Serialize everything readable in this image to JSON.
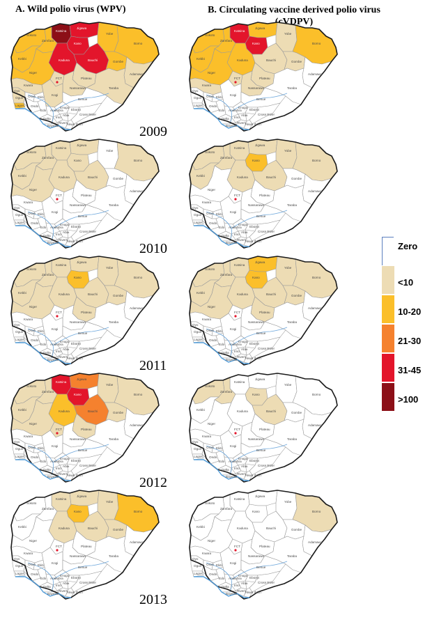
{
  "titles": {
    "col_a": "A. Wild polio virus (WPV)",
    "col_b": "B. Circulating vaccine derived polio virus (cVDPV)"
  },
  "years": [
    "2009",
    "2010",
    "2011",
    "2012",
    "2013"
  ],
  "legend": [
    {
      "label": "Zero",
      "color": "#ffffff"
    },
    {
      "label": "<10",
      "color": "#eddcb4"
    },
    {
      "label": "10-20",
      "color": "#fbbf2a"
    },
    {
      "label": "21-30",
      "color": "#f5812e"
    },
    {
      "label": "31-45",
      "color": "#e3152b"
    },
    {
      "label": ">100",
      "color": "#8c0f17"
    }
  ],
  "state_names": {
    "sokoto": "Sokoto",
    "katsina": "Katsina",
    "jigawa": "Jigawa",
    "yobe": "Yobe",
    "borno": "Borno",
    "zamfara": "Zamfara",
    "kano": "Kano",
    "kebbi": "Kebbi",
    "kaduna": "Kaduna",
    "bauchi": "Bauchi",
    "gombe": "Gombe",
    "adamawa": "Adamawa",
    "niger": "Niger",
    "plateau": "Plateau",
    "kwara": "Kwara",
    "nassarawa": "Nassarawa",
    "taraba": "Taraba",
    "oyo": "Oyo",
    "kogi": "Kogi",
    "benue": "Benue",
    "ekiti": "Ekiti",
    "ondo": "Ondo",
    "edo": "Edo",
    "ogun": "Ogun",
    "osun": "Osun",
    "lagos": "Lagos",
    "delta": "Delta",
    "anambra": "Anambra",
    "enugu": "Enugu",
    "ebonyi": "Ebonyi",
    "imo": "Imo",
    "abia": "Abia",
    "cross_river": "Cross River",
    "rivers": "Rivers",
    "bayelsa": "Bayelsa",
    "akwa_ibom": "Akwa Ibom",
    "fct": "FCT"
  },
  "maps": {
    "wpv": {
      "2009": {
        "sokoto": "10-20",
        "zamfara": "10-20",
        "katsina": ">100",
        "kano": "31-45",
        "jigawa": "31-45",
        "yobe": "10-20",
        "borno": "10-20",
        "kebbi": "10-20",
        "kaduna": "31-45",
        "bauchi": "31-45",
        "gombe": "10-20",
        "niger": "10-20",
        "plateau": "<10",
        "kwara": "<10",
        "oyo": "<10",
        "lagos": "10-20",
        "ogun": "<10",
        "nassarawa": "<10",
        "fct": "<10",
        "adamawa": "<10",
        "taraba": "<10",
        "kogi": "<10"
      },
      "2010": {
        "sokoto": "<10",
        "zamfara": "<10",
        "katsina": "<10",
        "jigawa": "<10",
        "kebbi": "<10",
        "niger": "<10",
        "borno": "<10",
        "kano": "<10",
        "kaduna": "<10",
        "bauchi": "<10"
      },
      "2011": {
        "sokoto": "<10",
        "zamfara": "<10",
        "katsina": "<10",
        "jigawa": "<10",
        "kano": "10-20",
        "yobe": "<10",
        "borno": "<10",
        "kebbi": "<10",
        "niger": "<10",
        "bauchi": "<10",
        "kaduna": "<10",
        "gombe": "<10",
        "plateau": "<10"
      },
      "2012": {
        "sokoto": "<10",
        "zamfara": "<10",
        "katsina": "31-45",
        "kano": "31-45",
        "jigawa": "21-30",
        "bauchi": "21-30",
        "kaduna": "10-20",
        "yobe": "<10",
        "borno": "<10",
        "kebbi": "<10",
        "niger": "<10",
        "gombe": "<10",
        "plateau": "<10",
        "fct": "<10"
      },
      "2013": {
        "katsina": "<10",
        "kano": "10-20",
        "jigawa": "<10",
        "yobe": "<10",
        "borno": "10-20",
        "bauchi": "<10",
        "kaduna": "<10",
        "gombe": "<10"
      }
    },
    "cvdpv": {
      "2009": {
        "sokoto": "10-20",
        "zamfara": "10-20",
        "katsina": "31-45",
        "kano": "31-45",
        "jigawa": "10-20",
        "kebbi": "10-20",
        "kaduna": "10-20",
        "niger": "10-20",
        "bauchi": "<10",
        "yobe": "<10",
        "borno": "10-20",
        "plateau": "<10",
        "gombe": "<10",
        "kwara": "<10",
        "fct": "<10",
        "nassarawa": "<10"
      },
      "2010": {
        "sokoto": "<10",
        "zamfara": "<10",
        "katsina": "<10",
        "kano": "10-20",
        "jigawa": "<10",
        "kaduna": "<10",
        "bauchi": "<10",
        "yobe": "<10",
        "borno": "<10",
        "kebbi": "<10"
      },
      "2011": {
        "sokoto": "<10",
        "zamfara": "<10",
        "katsina": "<10",
        "kano": "10-20",
        "jigawa": "10-20",
        "yobe": "<10",
        "borno": "<10",
        "kebbi": "<10",
        "niger": "<10",
        "bauchi": "<10",
        "kaduna": "<10",
        "gombe": "<10",
        "plateau": "<10"
      },
      "2012": {
        "sokoto": "<10",
        "zamfara": "<10",
        "kano": "<10",
        "bauchi": "<10"
      },
      "2013": {
        "borno": "<10"
      }
    }
  }
}
